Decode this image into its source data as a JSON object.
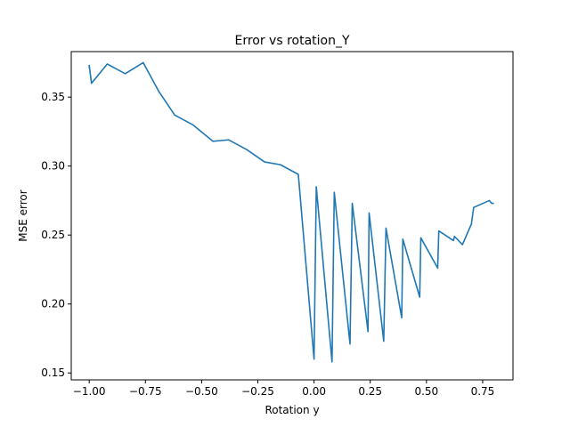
{
  "chart_data": {
    "type": "line",
    "title": "Error vs rotation_Y",
    "xlabel": "Rotation y",
    "ylabel": "MSE error",
    "xlim": [
      -1.08,
      0.885
    ],
    "ylim": [
      0.145,
      0.383
    ],
    "grid": false,
    "xticks": [
      -1.0,
      -0.75,
      -0.5,
      -0.25,
      0.0,
      0.25,
      0.5,
      0.75
    ],
    "xtick_labels": [
      "−1.00",
      "−0.75",
      "−0.50",
      "−0.25",
      "0.00",
      "0.25",
      "0.50",
      "0.75"
    ],
    "yticks": [
      0.15,
      0.2,
      0.25,
      0.3,
      0.35
    ],
    "ytick_labels": [
      "0.15",
      "0.20",
      "0.25",
      "0.30",
      "0.35"
    ],
    "series": [
      {
        "color": "#1f77b4",
        "x": [
          -1.0,
          -1.0,
          -0.99,
          -0.92,
          -0.84,
          -0.76,
          -0.69,
          -0.62,
          -0.54,
          -0.45,
          -0.38,
          -0.3,
          -0.22,
          -0.15,
          -0.07,
          0.0,
          0.01,
          0.08,
          0.09,
          0.16,
          0.17,
          0.24,
          0.245,
          0.31,
          0.32,
          0.39,
          0.395,
          0.47,
          0.475,
          0.55,
          0.555,
          0.62,
          0.625,
          0.66,
          0.7,
          0.71,
          0.78,
          0.79,
          0.8
        ],
        "y": [
          0.371,
          0.373,
          0.36,
          0.374,
          0.367,
          0.375,
          0.354,
          0.337,
          0.33,
          0.318,
          0.319,
          0.312,
          0.303,
          0.301,
          0.294,
          0.16,
          0.285,
          0.158,
          0.281,
          0.171,
          0.273,
          0.18,
          0.266,
          0.173,
          0.255,
          0.19,
          0.247,
          0.205,
          0.248,
          0.226,
          0.253,
          0.246,
          0.249,
          0.243,
          0.258,
          0.27,
          0.275,
          0.273,
          0.273
        ]
      }
    ]
  }
}
